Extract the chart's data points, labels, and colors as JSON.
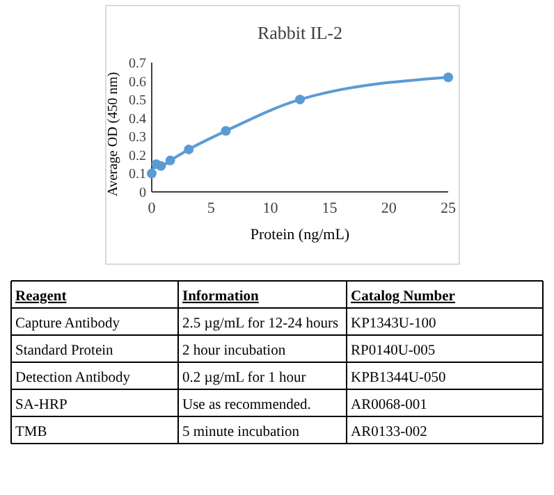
{
  "chart_data": [
    {
      "type": "line",
      "title": "Rabbit IL-2",
      "xlabel": "Protein (ng/mL)",
      "ylabel": "Average OD (450 nm)",
      "x": [
        0,
        0.39,
        0.78,
        1.56,
        3.125,
        6.25,
        12.5,
        25
      ],
      "series": [
        {
          "color": "#5b9bd5",
          "values": [
            0.1,
            0.15,
            0.14,
            0.17,
            0.23,
            0.33,
            0.5,
            0.62
          ]
        }
      ],
      "xlim": [
        0,
        25
      ],
      "xticks": [
        0,
        5,
        10,
        15,
        20,
        25
      ],
      "ylim": [
        0,
        0.7
      ],
      "yticks": [
        0,
        0.1,
        0.2,
        0.3,
        0.4,
        0.5,
        0.6,
        0.7
      ],
      "marker": "circle"
    },
    {
      "type": "other",
      "annotations": [
        "Reagent",
        "Information",
        "Catalog Number",
        "Capture Antibody",
        "2.5 µg/mL for 12-24 hours",
        "KP1343U-100",
        "Standard Protein",
        "2 hour incubation",
        "RP0140U-005",
        "Detection Antibody",
        "0.2 µg/mL for 1 hour",
        "KPB1344U-050",
        "SA-HRP",
        "Use as recommended.",
        "AR0068-001",
        "TMB",
        "5 minute incubation",
        "AR0133-002"
      ]
    }
  ]
}
